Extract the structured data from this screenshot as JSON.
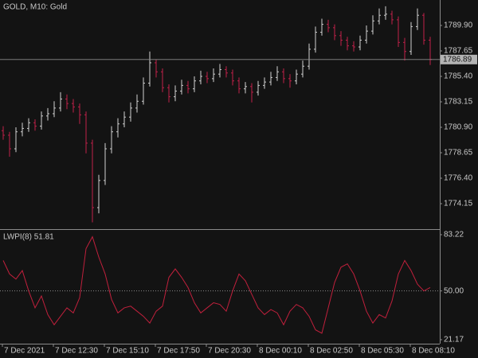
{
  "chart_data": [
    {
      "type": "ohlc",
      "title": "GOLD, M10:  Gold",
      "open": [
        1780.6,
        1780.2,
        1779.0,
        1780.5,
        1780.8,
        1781.3,
        1781.0,
        1781.9,
        1782.1,
        1782.6,
        1783.4,
        1783.0,
        1782.7,
        1782.0,
        1779.5,
        1773.8,
        1776.2,
        1779.0,
        1780.5,
        1781.2,
        1781.8,
        1782.6,
        1783.2,
        1784.8,
        1786.6,
        1785.8,
        1784.4,
        1783.6,
        1784.1,
        1784.6,
        1784.3,
        1785.0,
        1785.4,
        1785.2,
        1785.6,
        1786.0,
        1785.7,
        1785.0,
        1784.3,
        1784.5,
        1784.0,
        1784.6,
        1784.9,
        1785.3,
        1785.8,
        1785.2,
        1785.0,
        1785.6,
        1786.3,
        1787.8,
        1789.3,
        1790.0,
        1789.7,
        1789.0,
        1788.6,
        1788.1,
        1788.0,
        1788.6,
        1789.4,
        1790.3,
        1790.8,
        1790.9,
        1790.4,
        1788.4,
        1787.6,
        1789.8,
        1790.8,
        1788.6
      ],
      "high": [
        1781.0,
        1780.5,
        1780.9,
        1781.3,
        1781.7,
        1781.6,
        1782.3,
        1782.6,
        1783.2,
        1784.0,
        1783.8,
        1783.4,
        1783.0,
        1782.3,
        1779.8,
        1776.7,
        1779.5,
        1781.0,
        1781.7,
        1782.3,
        1783.1,
        1783.8,
        1785.3,
        1787.6,
        1786.9,
        1786.1,
        1784.7,
        1784.6,
        1785.1,
        1785.0,
        1785.4,
        1785.9,
        1785.8,
        1786.1,
        1786.5,
        1786.3,
        1786.0,
        1785.3,
        1784.9,
        1784.8,
        1785.0,
        1785.3,
        1785.8,
        1786.3,
        1786.1,
        1785.6,
        1786.0,
        1786.8,
        1788.3,
        1789.8,
        1790.5,
        1790.4,
        1790.0,
        1789.4,
        1788.9,
        1788.5,
        1789.0,
        1789.9,
        1790.8,
        1791.4,
        1791.6,
        1791.2,
        1790.7,
        1788.8,
        1790.2,
        1791.4,
        1791.0,
        1788.9
      ],
      "low": [
        1779.8,
        1778.3,
        1778.7,
        1780.1,
        1780.5,
        1780.6,
        1780.7,
        1781.5,
        1781.8,
        1782.3,
        1782.5,
        1782.2,
        1781.2,
        1778.6,
        1772.5,
        1773.3,
        1775.8,
        1778.6,
        1780.0,
        1780.9,
        1781.4,
        1782.2,
        1782.9,
        1784.5,
        1785.3,
        1784.0,
        1783.1,
        1783.2,
        1783.8,
        1783.9,
        1784.0,
        1784.7,
        1784.8,
        1784.9,
        1785.3,
        1785.3,
        1784.6,
        1783.9,
        1783.9,
        1783.1,
        1783.7,
        1784.3,
        1784.6,
        1785.0,
        1784.8,
        1784.4,
        1784.7,
        1785.3,
        1786.0,
        1787.5,
        1789.0,
        1789.3,
        1788.6,
        1788.1,
        1787.7,
        1787.6,
        1787.7,
        1788.3,
        1789.1,
        1790.0,
        1790.4,
        1790.0,
        1788.0,
        1786.8,
        1787.3,
        1789.5,
        1788.2,
        1786.4
      ],
      "close": [
        1780.2,
        1779.0,
        1780.5,
        1780.8,
        1781.3,
        1781.0,
        1781.9,
        1782.1,
        1782.6,
        1783.4,
        1783.0,
        1782.7,
        1782.0,
        1779.5,
        1773.8,
        1776.2,
        1779.0,
        1780.5,
        1781.2,
        1781.8,
        1782.6,
        1783.2,
        1784.8,
        1786.6,
        1785.8,
        1784.4,
        1783.6,
        1784.1,
        1784.6,
        1784.3,
        1785.0,
        1785.4,
        1785.2,
        1785.6,
        1786.0,
        1785.7,
        1785.0,
        1784.3,
        1784.5,
        1784.0,
        1784.6,
        1784.9,
        1785.3,
        1785.8,
        1785.2,
        1785.0,
        1785.6,
        1786.3,
        1787.8,
        1789.3,
        1790.0,
        1789.7,
        1789.0,
        1788.6,
        1788.1,
        1788.0,
        1788.6,
        1789.4,
        1790.3,
        1790.8,
        1790.9,
        1790.4,
        1788.4,
        1787.6,
        1789.8,
        1790.8,
        1788.6,
        1786.9
      ],
      "up_color": "#d0d0d0",
      "down_color": "#c0204a",
      "current_price": 1786.89,
      "ylim": [
        1771.9,
        1792.15
      ],
      "yticks": [
        {
          "value": 1789.9,
          "label": "1789.90"
        },
        1787.65,
        {
          "value": 1785.4,
          "label": "1785.40"
        },
        1783.15,
        {
          "value": 1780.9,
          "label": "1780.90"
        },
        1778.65,
        {
          "value": 1776.4,
          "label": "1776.40"
        },
        1774.15
      ]
    },
    {
      "type": "line",
      "title": "LWPI(8) 51.81",
      "color": "#c0203c",
      "values": [
        68,
        60,
        57,
        62,
        50,
        40,
        47,
        36,
        30,
        35,
        40,
        37,
        46,
        75,
        82,
        70,
        60,
        45,
        37,
        40,
        41,
        38,
        35,
        31,
        38,
        41,
        58,
        63,
        58,
        52,
        43,
        37,
        40,
        43,
        42,
        38,
        50,
        60,
        56,
        48,
        40,
        36,
        39,
        37,
        30,
        38,
        42,
        40,
        35,
        27,
        25,
        40,
        55,
        64,
        66,
        60,
        50,
        38,
        31,
        36,
        34,
        44,
        60,
        68,
        62,
        54,
        50,
        52
      ],
      "level": 50,
      "ylim": [
        18.82,
        85.57
      ],
      "yticks": [
        83.22,
        {
          "value": 50,
          "label": "50.00"
        },
        21.17
      ],
      "x_labels": [
        "7 Dec 2021",
        "7 Dec 12:30",
        "7 Dec 15:10",
        "7 Dec 17:50",
        "7 Dec 20:30",
        "8 Dec 00:10",
        "8 Dec 02:50",
        "8 Dec 05:30",
        "8 Dec 08:10"
      ]
    }
  ]
}
